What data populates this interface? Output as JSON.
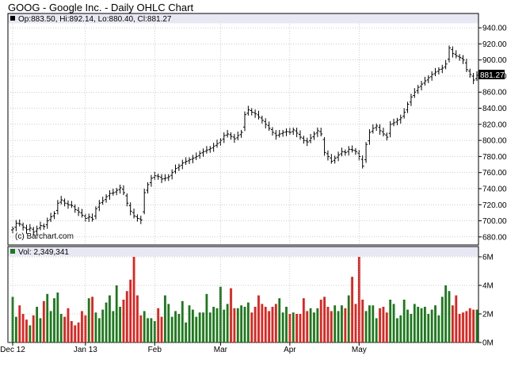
{
  "chart_data": [
    {
      "type": "ohlc",
      "title": "GOOG - Google Inc. - Daily OHLC Chart",
      "legend": "Op:883.50, Hi:892.14, Lo:880.40, Cl:881.27",
      "last_price": "881.27",
      "watermark": "(c) Barchart.com",
      "ylim": [
        670,
        945
      ],
      "y_ticks": [
        "680.00",
        "700.00",
        "720.00",
        "740.00",
        "760.00",
        "780.00",
        "800.00",
        "820.00",
        "840.00",
        "860.00",
        "880.00",
        "900.00",
        "920.00",
        "940.00"
      ],
      "x_ticks": [
        "Dec 12",
        "Jan 13",
        "Feb",
        "Mar",
        "Apr",
        "May"
      ],
      "x_tick_index": [
        0,
        21,
        41,
        60,
        80,
        100
      ],
      "closes": [
        690,
        697,
        696,
        692,
        689,
        691,
        686,
        690,
        694,
        693,
        700,
        705,
        709,
        722,
        726,
        722,
        720,
        719,
        714,
        711,
        707,
        703,
        705,
        702,
        715,
        722,
        725,
        730,
        734,
        735,
        738,
        741,
        735,
        722,
        712,
        706,
        703,
        701,
        735,
        745,
        753,
        756,
        755,
        752,
        753,
        755,
        760,
        765,
        768,
        772,
        774,
        776,
        778,
        780,
        784,
        786,
        788,
        790,
        793,
        796,
        800,
        806,
        808,
        805,
        802,
        806,
        810,
        832,
        838,
        835,
        833,
        829,
        825,
        820,
        815,
        810,
        806,
        808,
        810,
        811,
        810,
        813,
        809,
        804,
        800,
        798,
        803,
        808,
        812,
        808,
        785,
        780,
        774,
        778,
        782,
        786,
        785,
        789,
        788,
        786,
        780,
        768,
        795,
        810,
        815,
        818,
        812,
        808,
        804,
        820,
        822,
        825,
        828,
        835,
        845,
        854,
        860,
        866,
        870,
        874,
        878,
        882,
        885,
        888,
        890,
        895,
        915,
        908,
        905,
        903,
        900,
        888,
        882,
        875,
        881
      ],
      "volume_title": "Vol: 2,349,341",
      "volume_ticks": [
        "0M",
        "2M",
        "4M",
        "6M"
      ],
      "volume_ylim": [
        0,
        6
      ],
      "volumes": [
        3.2,
        1.8,
        2.6,
        2.0,
        1.6,
        1.2,
        1.9,
        2.5,
        1.7,
        2.9,
        3.4,
        2.2,
        3.1,
        3.5,
        2.0,
        1.8,
        2.4,
        1.5,
        1.2,
        1.4,
        2.2,
        1.9,
        3.1,
        3.2,
        2.1,
        1.7,
        2.3,
        2.8,
        3.3,
        2.2,
        4.0,
        2.5,
        3.0,
        3.6,
        4.4,
        6.6,
        3.3,
        1.9,
        2.2,
        1.7,
        1.7,
        1.5,
        2.4,
        1.8,
        3.3,
        2.7,
        1.8,
        2.2,
        2.0,
        2.9,
        1.4,
        2.6,
        2.3,
        1.8,
        2.1,
        2.1,
        3.4,
        2.1,
        2.5,
        2.4,
        3.9,
        2.3,
        2.7,
        3.8,
        2.4,
        2.4,
        2.6,
        2.5,
        2.8,
        2.1,
        2.5,
        3.3,
        2.7,
        2.5,
        2.2,
        2.5,
        2.7,
        3.1,
        2.1,
        2.5,
        2.0,
        2.1,
        2.0,
        2.0,
        3.1,
        2.2,
        2.4,
        2.1,
        2.4,
        3.0,
        3.2,
        2.5,
        2.2,
        2.6,
        2.2,
        2.6,
        2.4,
        3.3,
        4.6,
        2.7,
        6.7,
        3.0,
        2.2,
        2.6,
        2.6,
        1.7,
        2.4,
        2.5,
        2.1,
        3.0,
        2.7,
        1.7,
        1.9,
        3.0,
        2.3,
        2.0,
        2.7,
        2.5,
        2.4,
        2.5,
        2.0,
        2.3,
        2.6,
        1.9,
        3.2,
        4.0,
        3.6,
        2.6,
        3.3,
        2.0,
        2.1,
        2.2,
        2.4,
        2.3,
        2.3
      ],
      "colors": {
        "up": "#1a7a1a",
        "down": "#e8201c",
        "bar": "#000000",
        "header": "#e8e8f4",
        "grid": "#9e9e9e"
      }
    }
  ]
}
